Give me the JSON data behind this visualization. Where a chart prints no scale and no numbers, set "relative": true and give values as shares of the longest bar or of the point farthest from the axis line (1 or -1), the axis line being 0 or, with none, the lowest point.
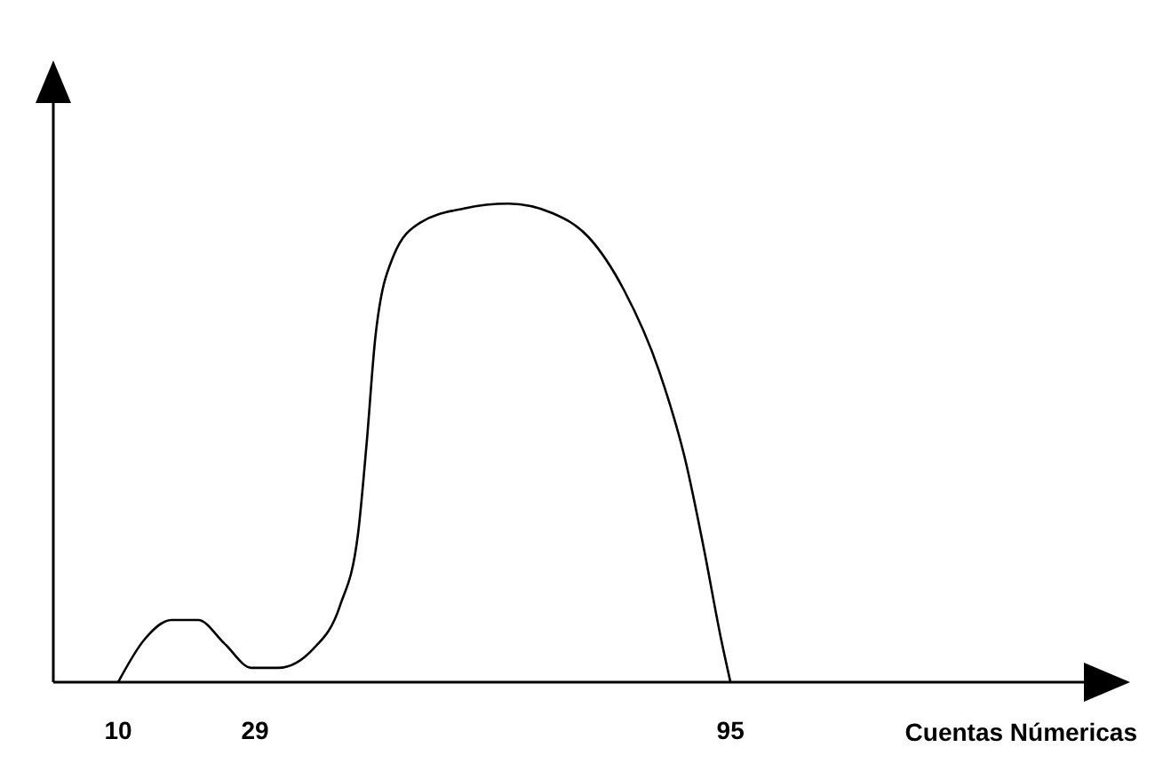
{
  "chart_data": {
    "type": "line",
    "xlabel": "Cuentas Númericas",
    "relative": true,
    "xlim": [
      1,
      149
    ],
    "xticks": [
      10,
      29,
      95
    ],
    "marker": "none",
    "line_style": "solid",
    "x": [
      10,
      13.7,
      17.4,
      21.1,
      24.8,
      28.5,
      32.2,
      37.1,
      40.8,
      43.3,
      44.5,
      45.7,
      48.2,
      51.9,
      58,
      64.2,
      70.3,
      75.3,
      80.2,
      85.1,
      88.8,
      91.3,
      93.7,
      95
    ],
    "series": [
      {
        "color": "#000000",
        "values": [
          0,
          0.09,
          0.13,
          0.13,
          0.08,
          0.03,
          0.03,
          0.07,
          0.16,
          0.31,
          0.5,
          0.72,
          0.89,
          0.96,
          0.99,
          1,
          0.98,
          0.93,
          0.82,
          0.65,
          0.46,
          0.28,
          0.09,
          0
        ]
      }
    ]
  }
}
